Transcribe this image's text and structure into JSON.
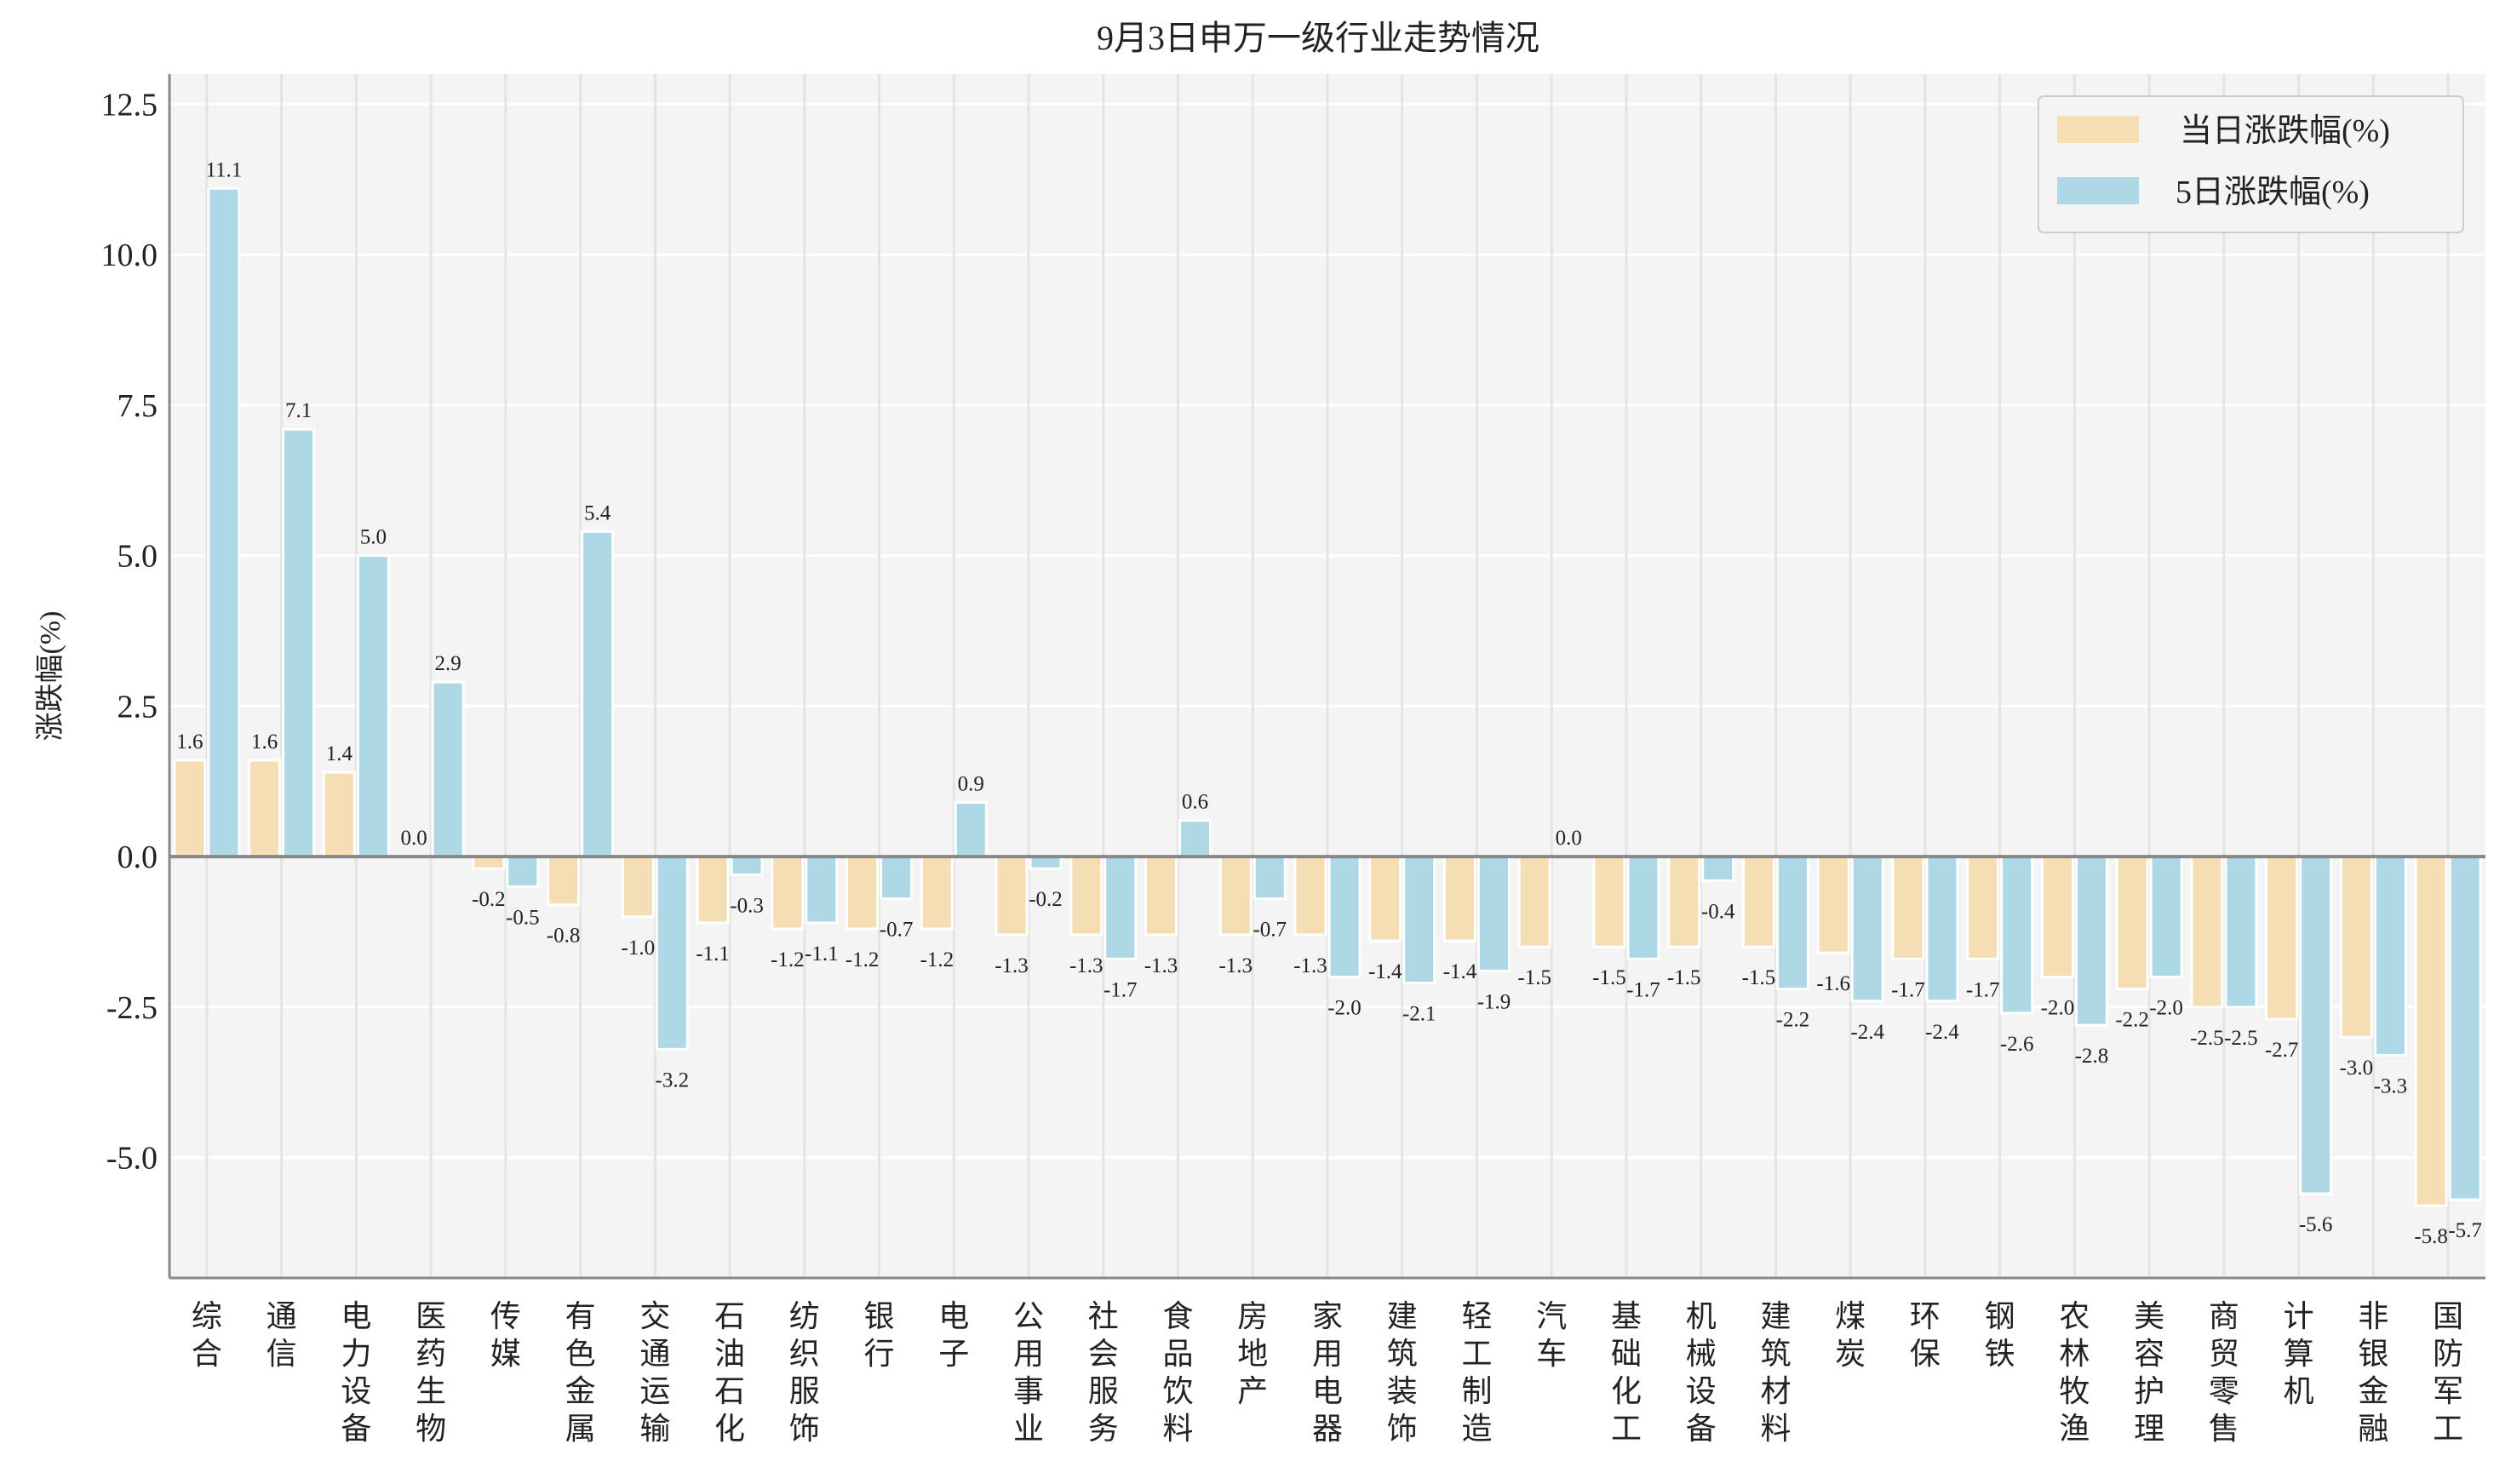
{
  "chart_data": {
    "type": "bar",
    "title": "9月3日申万一级行业走势情况",
    "xlabel": "",
    "ylabel": "涨跌幅(%)",
    "ylim": [
      -7,
      13
    ],
    "yticks": [
      -5.0,
      -2.5,
      0.0,
      2.5,
      5.0,
      7.5,
      10.0,
      12.5
    ],
    "ytick_labels": [
      "-5.0",
      "-2.5",
      "0.0",
      "2.5",
      "5.0",
      "7.5",
      "10.0",
      "12.5"
    ],
    "grid": true,
    "legend_position": "top-right",
    "categories": [
      "综合",
      "通信",
      "电力设备",
      "医药生物",
      "传媒",
      "有色金属",
      "交通运输",
      "石油石化",
      "纺织服饰",
      "银行",
      "电子",
      "公用事业",
      "社会服务",
      "食品饮料",
      "房地产",
      "家用电器",
      "建筑装饰",
      "轻工制造",
      "汽车",
      "基础化工",
      "机械设备",
      "建筑材料",
      "煤炭",
      "环保",
      "钢铁",
      "农林牧渔",
      "美容护理",
      "商贸零售",
      "计算机",
      "非银金融",
      "国防军工"
    ],
    "series": [
      {
        "name": "当日涨跌幅(%)",
        "color": "#f5deb3",
        "values": [
          1.6,
          1.6,
          1.4,
          0.0,
          -0.2,
          -0.8,
          -1.0,
          -1.1,
          -1.2,
          -1.2,
          -1.2,
          -1.3,
          -1.3,
          -1.3,
          -1.3,
          -1.3,
          -1.4,
          -1.4,
          -1.5,
          -1.5,
          -1.5,
          -1.5,
          -1.6,
          -1.7,
          -1.7,
          -2.0,
          -2.2,
          -2.5,
          -2.7,
          -3.0,
          -5.8
        ]
      },
      {
        "name": "5日涨跌幅(%)",
        "color": "#add8e6",
        "values": [
          11.1,
          7.1,
          5.0,
          2.9,
          -0.5,
          5.4,
          -3.2,
          -0.3,
          -1.1,
          -0.7,
          0.9,
          -0.2,
          -1.7,
          0.6,
          -0.7,
          -2.0,
          -2.1,
          -1.9,
          0.0,
          -1.7,
          -0.4,
          -2.2,
          -2.4,
          -2.4,
          -2.6,
          -2.8,
          -2.0,
          -2.5,
          -5.6,
          -3.3,
          -5.7
        ]
      }
    ]
  }
}
